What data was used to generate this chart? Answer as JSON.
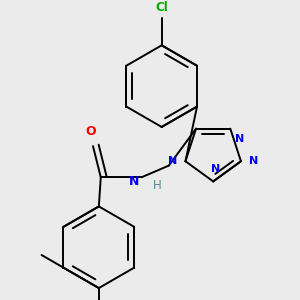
{
  "background_color": "#ebebeb",
  "bond_color": "#000000",
  "atom_colors": {
    "N": "#0000ee",
    "O": "#ff0000",
    "Cl": "#00aa00",
    "H": "#4a9090",
    "C": "#000000"
  },
  "figsize": [
    3.0,
    3.0
  ],
  "dpi": 100
}
